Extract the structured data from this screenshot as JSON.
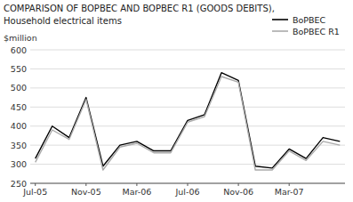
{
  "chart_data": {
    "type": "line",
    "title": "COMPARISON OF BOPBEC AND BOPBEC R1 (GOODS DEBITS),",
    "subtitle": "Household electrical items",
    "y_label": "$million",
    "categories": [
      "Jul-05",
      null,
      null,
      "Nov-05",
      null,
      null,
      "Mar-06",
      null,
      null,
      "Jul-06",
      null,
      null,
      "Nov-06",
      null,
      null,
      "Mar-07",
      null,
      null,
      null
    ],
    "series": [
      {
        "name": "BoPBEC",
        "color": "#000000",
        "values": [
          315,
          400,
          370,
          475,
          295,
          350,
          360,
          335,
          335,
          415,
          430,
          540,
          520,
          295,
          290,
          340,
          315,
          370,
          360
        ]
      },
      {
        "name": "BoPBEC R1",
        "color": "#aaaaaa",
        "values": [
          305,
          390,
          365,
          470,
          285,
          345,
          355,
          330,
          330,
          410,
          425,
          530,
          515,
          285,
          285,
          335,
          310,
          360,
          350
        ]
      }
    ],
    "ylim": [
      250,
      600
    ],
    "yticks": [
      250,
      300,
      350,
      400,
      450,
      500,
      550,
      600
    ],
    "grid": true,
    "legend": "upper right"
  }
}
